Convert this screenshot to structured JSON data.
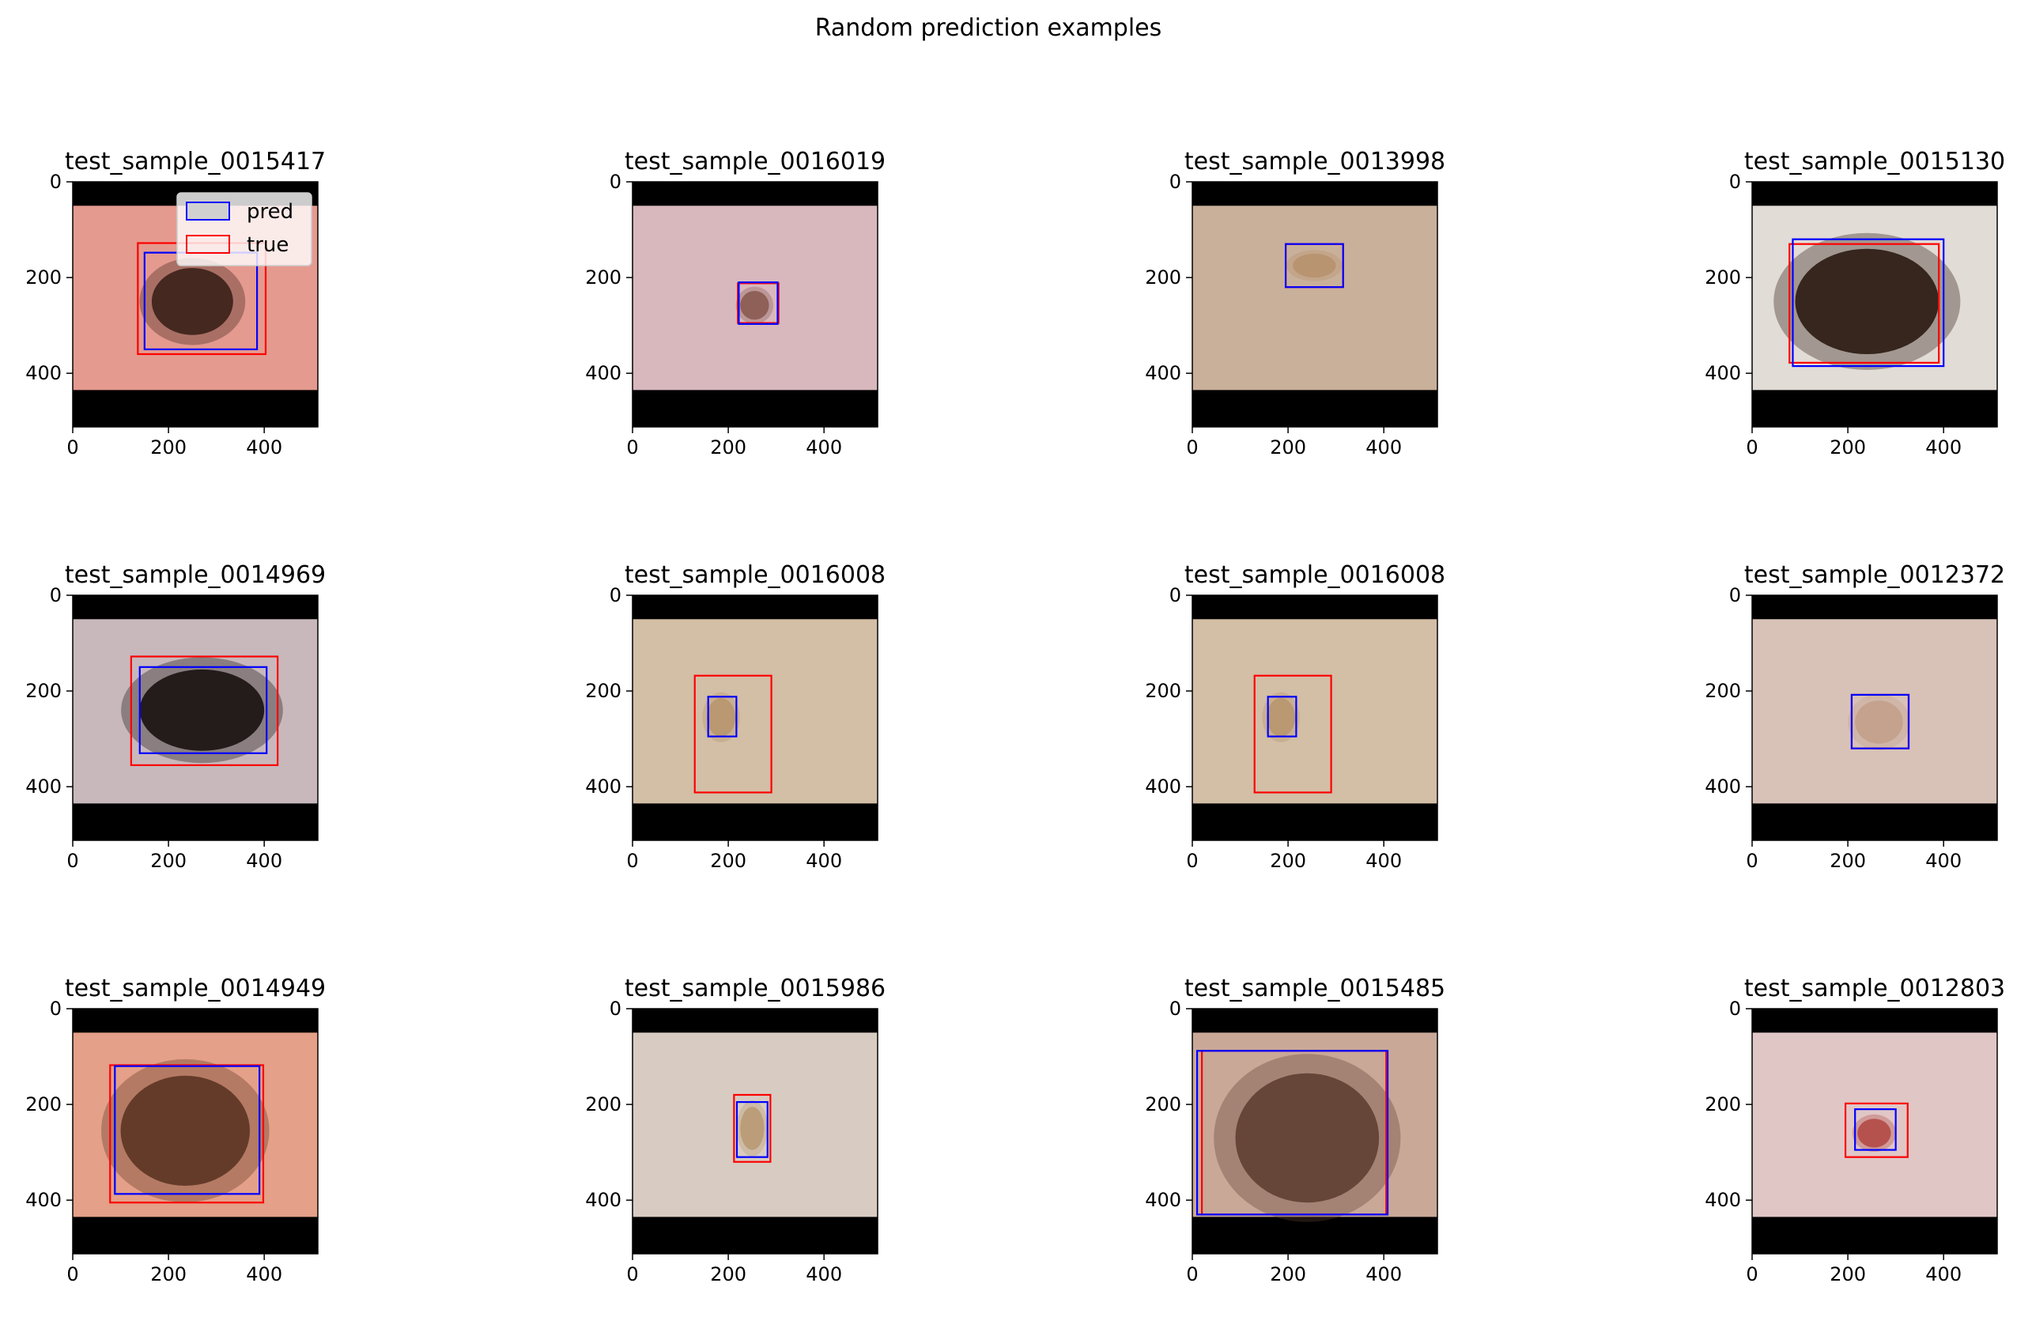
{
  "chart_data": {
    "type": "image-grid",
    "title": "Random prediction examples",
    "legend": {
      "placement": "upper-right of first panel",
      "entries": [
        {
          "label": "pred",
          "color": "#0000ff"
        },
        {
          "label": "true",
          "color": "#ff0000"
        }
      ]
    },
    "axis": {
      "xlim": [
        0,
        512
      ],
      "ylim": [
        512,
        0
      ],
      "xticks": [
        0,
        200,
        400
      ],
      "yticks": [
        0,
        200,
        400
      ],
      "xticklabels": [
        "0",
        "200",
        "400"
      ],
      "yticklabels": [
        "0",
        "200",
        "400"
      ]
    },
    "colors": {
      "pred": "#0000ff",
      "true": "#ff0000",
      "background": "#000000"
    },
    "panels": [
      {
        "title": "test_sample_0015417",
        "skin": "#e59a8f",
        "lesion": {
          "cx": 250,
          "cy": 250,
          "rx": 85,
          "ry": 70,
          "color": "#3a2018"
        },
        "pred": [
          150,
          148,
          385,
          350
        ],
        "true": [
          136,
          128,
          403,
          360
        ]
      },
      {
        "title": "test_sample_0016019",
        "skin": "#d8b8bd",
        "lesion": {
          "cx": 255,
          "cy": 258,
          "rx": 30,
          "ry": 30,
          "color": "#8a5a50"
        },
        "pred": [
          222,
          210,
          303,
          297
        ],
        "true": [
          220,
          212,
          305,
          295
        ]
      },
      {
        "title": "test_sample_0013998",
        "skin": "#c9b09a",
        "lesion": {
          "cx": 255,
          "cy": 175,
          "rx": 45,
          "ry": 25,
          "color": "#b8926e"
        },
        "pred": [
          195,
          130,
          315,
          220
        ],
        "true": [
          195,
          130,
          315,
          220
        ]
      },
      {
        "title": "test_sample_0015130",
        "skin": "#e2dcd6",
        "lesion": {
          "cx": 240,
          "cy": 250,
          "rx": 150,
          "ry": 110,
          "color": "#2a1a12"
        },
        "pred": [
          85,
          120,
          400,
          385
        ],
        "true": [
          78,
          130,
          390,
          378
        ]
      },
      {
        "title": "test_sample_0014969",
        "skin": "#c8b8bc",
        "lesion": {
          "cx": 270,
          "cy": 240,
          "rx": 130,
          "ry": 85,
          "color": "#171210"
        },
        "pred": [
          140,
          150,
          405,
          330
        ],
        "true": [
          122,
          128,
          428,
          355
        ]
      },
      {
        "title": "test_sample_0016008",
        "skin": "#d3bea6",
        "lesion": {
          "cx": 185,
          "cy": 255,
          "rx": 30,
          "ry": 40,
          "color": "#b8966e"
        },
        "pred": [
          158,
          212,
          217,
          295
        ],
        "true": [
          130,
          168,
          290,
          412
        ]
      },
      {
        "title": "test_sample_0016008",
        "skin": "#d3bea6",
        "lesion": {
          "cx": 185,
          "cy": 255,
          "rx": 30,
          "ry": 40,
          "color": "#b8966e"
        },
        "pred": [
          158,
          212,
          217,
          295
        ],
        "true": [
          130,
          168,
          290,
          412
        ]
      },
      {
        "title": "test_sample_0012372",
        "skin": "#d8c2b8",
        "lesion": {
          "cx": 265,
          "cy": 265,
          "rx": 50,
          "ry": 45,
          "color": "#c2a08a"
        },
        "pred": [
          208,
          208,
          327,
          320
        ],
        "true": [
          208,
          208,
          327,
          320
        ]
      },
      {
        "title": "test_sample_0014949",
        "skin": "#e4a088",
        "lesion": {
          "cx": 235,
          "cy": 255,
          "rx": 135,
          "ry": 115,
          "color": "#5b3422"
        },
        "pred": [
          88,
          120,
          390,
          387
        ],
        "true": [
          78,
          118,
          398,
          405
        ]
      },
      {
        "title": "test_sample_0015986",
        "skin": "#d8ccc2",
        "lesion": {
          "cx": 250,
          "cy": 250,
          "rx": 25,
          "ry": 45,
          "color": "#b99a74"
        },
        "pred": [
          218,
          195,
          282,
          310
        ],
        "true": [
          212,
          180,
          288,
          320
        ]
      },
      {
        "title": "test_sample_0015485",
        "skin": "#c9a898",
        "lesion": {
          "cx": 240,
          "cy": 270,
          "rx": 150,
          "ry": 135,
          "color": "#5e3f32"
        },
        "pred": [
          10,
          88,
          408,
          430
        ],
        "true": [
          20,
          88,
          405,
          430
        ]
      },
      {
        "title": "test_sample_0012803",
        "skin": "#e0c7c6",
        "lesion": {
          "cx": 255,
          "cy": 260,
          "rx": 35,
          "ry": 30,
          "color": "#b34a45"
        },
        "pred": [
          215,
          210,
          300,
          295
        ],
        "true": [
          195,
          198,
          325,
          310
        ]
      }
    ]
  }
}
